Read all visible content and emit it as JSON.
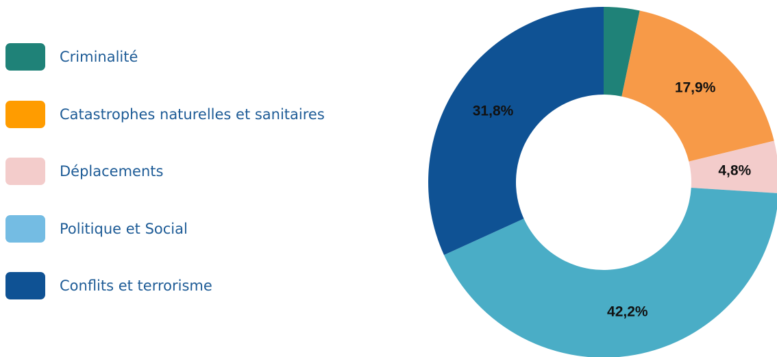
{
  "chart_data": {
    "type": "pie",
    "subtype": "donut",
    "legend_position": "left",
    "slices": [
      {
        "label": "Criminalité",
        "value": 3.3,
        "value_label": "",
        "color": "#1f8278"
      },
      {
        "label": "Catastrophes naturelles et sanitaires",
        "value": 17.9,
        "value_label": "17,9%",
        "color": "#f79a48"
      },
      {
        "label": "Déplacements",
        "value": 4.8,
        "value_label": "4,8%",
        "color": "#f3cccb"
      },
      {
        "label": "Politique et Social",
        "value": 42.2,
        "value_label": "42,2%",
        "color": "#4aadc6"
      },
      {
        "label": "Conflits et terrorisme",
        "value": 31.8,
        "value_label": "31,8%",
        "color": "#0f5294"
      }
    ],
    "legend": [
      {
        "label": "Criminalité",
        "color": "#1f8278"
      },
      {
        "label": "Catastrophes naturelles et sanitaires",
        "color": "#ff9c00"
      },
      {
        "label": "Déplacements",
        "color": "#f3cccb"
      },
      {
        "label": "Politique et Social",
        "color": "#74bce3"
      },
      {
        "label": "Conflits et terrorisme",
        "color": "#0f5294"
      }
    ]
  }
}
